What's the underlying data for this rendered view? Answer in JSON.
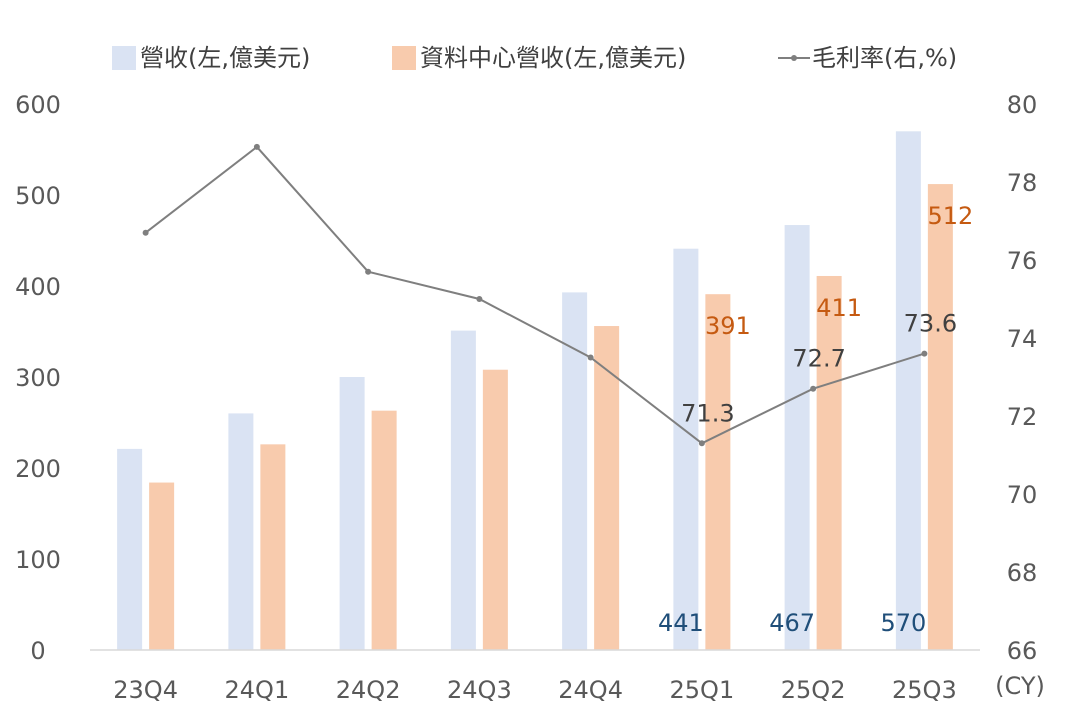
{
  "chart_data": {
    "type": "bar",
    "categories": [
      "23Q4",
      "24Q1",
      "24Q2",
      "24Q3",
      "24Q4",
      "25Q1",
      "25Q2",
      "25Q3"
    ],
    "x_unit": "(CY)",
    "series": [
      {
        "name": "營收(左,億美元)",
        "type": "bar",
        "axis": "left",
        "color": "#dae3f3",
        "values": [
          221,
          260,
          300,
          351,
          393,
          441,
          467,
          570
        ]
      },
      {
        "name": "資料中心營收(左,億美元)",
        "type": "bar",
        "axis": "left",
        "color": "#f8cbad",
        "values": [
          184,
          226,
          263,
          308,
          356,
          391,
          411,
          512
        ]
      },
      {
        "name": "毛利率(右,%)",
        "type": "line",
        "axis": "right",
        "color": "#7f7f7f",
        "values": [
          76.7,
          78.9,
          75.7,
          75.0,
          73.5,
          71.3,
          72.7,
          73.6
        ]
      }
    ],
    "y_left": {
      "min": 0,
      "max": 600,
      "ticks": [
        "0",
        "100",
        "200",
        "300",
        "400",
        "500",
        "600"
      ]
    },
    "y_right": {
      "min": 66,
      "max": 80,
      "ticks": [
        "66",
        "68",
        "70",
        "72",
        "74",
        "76",
        "78",
        "80"
      ]
    },
    "data_labels": {
      "revenue": [
        {
          "index": 5,
          "text": "441"
        },
        {
          "index": 6,
          "text": "467"
        },
        {
          "index": 7,
          "text": "570"
        }
      ],
      "datacenter": [
        {
          "index": 5,
          "text": "391"
        },
        {
          "index": 6,
          "text": "411"
        },
        {
          "index": 7,
          "text": "512"
        }
      ],
      "margin": [
        {
          "index": 5,
          "text": "71.3"
        },
        {
          "index": 6,
          "text": "72.7"
        },
        {
          "index": 7,
          "text": "73.6"
        }
      ]
    },
    "legend_position": "top",
    "grid": false
  }
}
